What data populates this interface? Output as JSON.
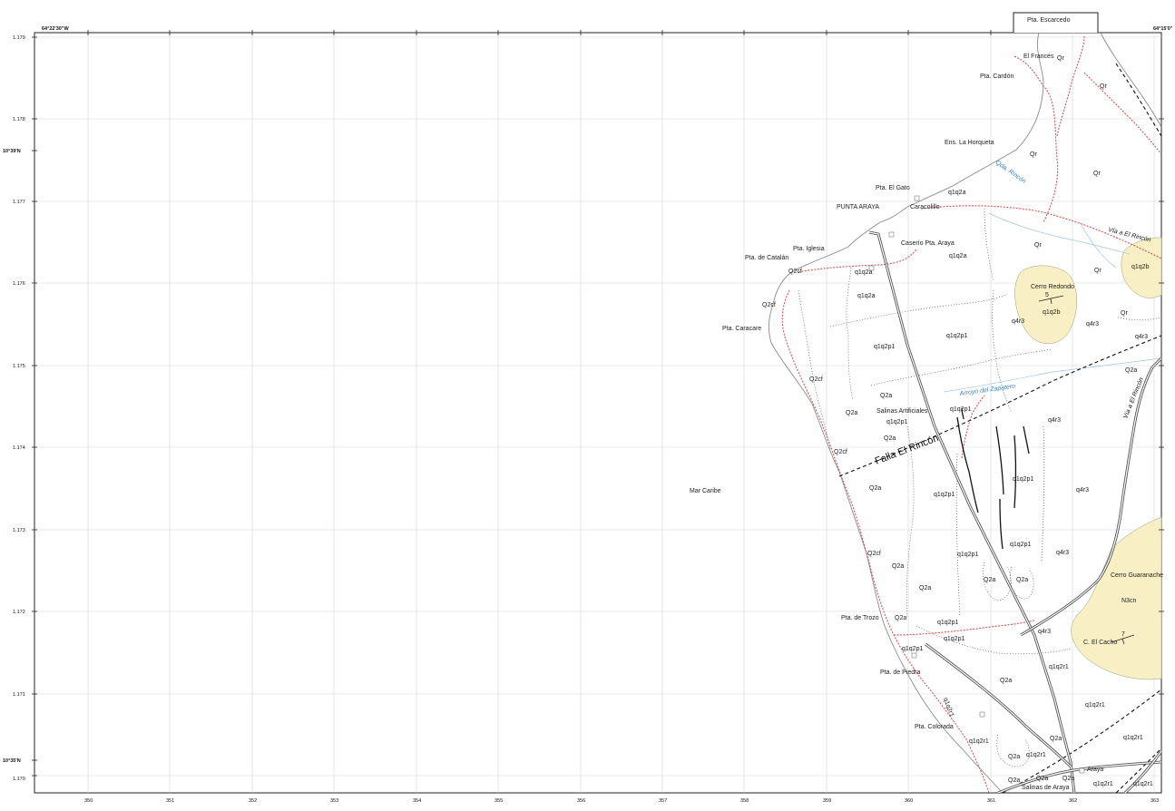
{
  "corner_labels": {
    "top_left_lon": "64°22'30\"W",
    "top_right_lon": "64°15'0\"",
    "lat_top": "10°39'N",
    "lat_bottom": "10°35'N"
  },
  "grid": {
    "eastings": [
      "350",
      "351",
      "352",
      "353",
      "354",
      "355",
      "356",
      "357",
      "358",
      "359",
      "360",
      "361",
      "362",
      "363"
    ],
    "northings": [
      "1.179",
      "1.178",
      "1.177",
      "1.176",
      "1.175",
      "1.174",
      "1.173",
      "1.172",
      "1.171",
      "1.170"
    ]
  },
  "sea_label": "Mar Caribe",
  "inset_label": "Pta. Escarcedo",
  "places": [
    "El Francés",
    "Pta. Cardón",
    "Ens. La Horqueta",
    "Pta. El Gato",
    "Caracolillo",
    "PUNTA ARAYA",
    "Caserío Pta. Araya",
    "Pta. Iglesia",
    "Pta. de Catalán",
    "Pta. Caracare",
    "Cerro Redondo",
    "Salinas Artificiales",
    "Pta. de Trozo",
    "Pta. de Piedra",
    "Pta. Colorada",
    "Cerro Guaranache",
    "C. El Cacho",
    "Araya",
    "Salinas de Araya"
  ],
  "water_labels": [
    "Qda. Rincón",
    "Arroyo del Zapatero"
  ],
  "fault_label": "Falla El Rincón",
  "road_labels": [
    "Vía a El Rincón",
    "Vía a El Rincón"
  ],
  "geo_units": [
    "Qr",
    "Qr",
    "Qr",
    "Qr",
    "Qr",
    "Qr",
    "Qr",
    "q1q2a",
    "q1q2a",
    "q1q2a",
    "q1q2a",
    "Q2cf",
    "Q2cf",
    "Q2cf",
    "Q2cf",
    "Q2cf",
    "q1q2b",
    "q1q2b",
    "q1q2p1",
    "q1q2p1",
    "q1q2p1",
    "q1q2p1",
    "q1q2p1",
    "q1q2p1",
    "q1q2p1",
    "q1q2p1",
    "q1q2p1",
    "q1q2p1",
    "q1q2p1",
    "q4r3",
    "q4r3",
    "q4r3",
    "q4r3",
    "q4r3",
    "q4r3",
    "q4r3",
    "Q2a",
    "Q2a",
    "Q2a",
    "Q2a",
    "Q2a",
    "Q2a",
    "Q2a",
    "Q2a",
    "Q2a",
    "Q2a",
    "Q2a",
    "Q2a",
    "Q2a",
    "Q2a",
    "Q2a",
    "Q2a",
    "N3cn",
    "q1q2r1",
    "q1q2r1",
    "q1q2r1",
    "q1q2r1",
    "q1q2r1",
    "q1q2r1",
    "q1q2r1",
    "q1q2r1"
  ],
  "dip_values": [
    "5",
    "7"
  ],
  "colors": {
    "terrain_fill": "#f8f0c4",
    "road_red": "#d9534f",
    "water_blue": "#7fb3e0",
    "grid": "#d5d5d5"
  }
}
